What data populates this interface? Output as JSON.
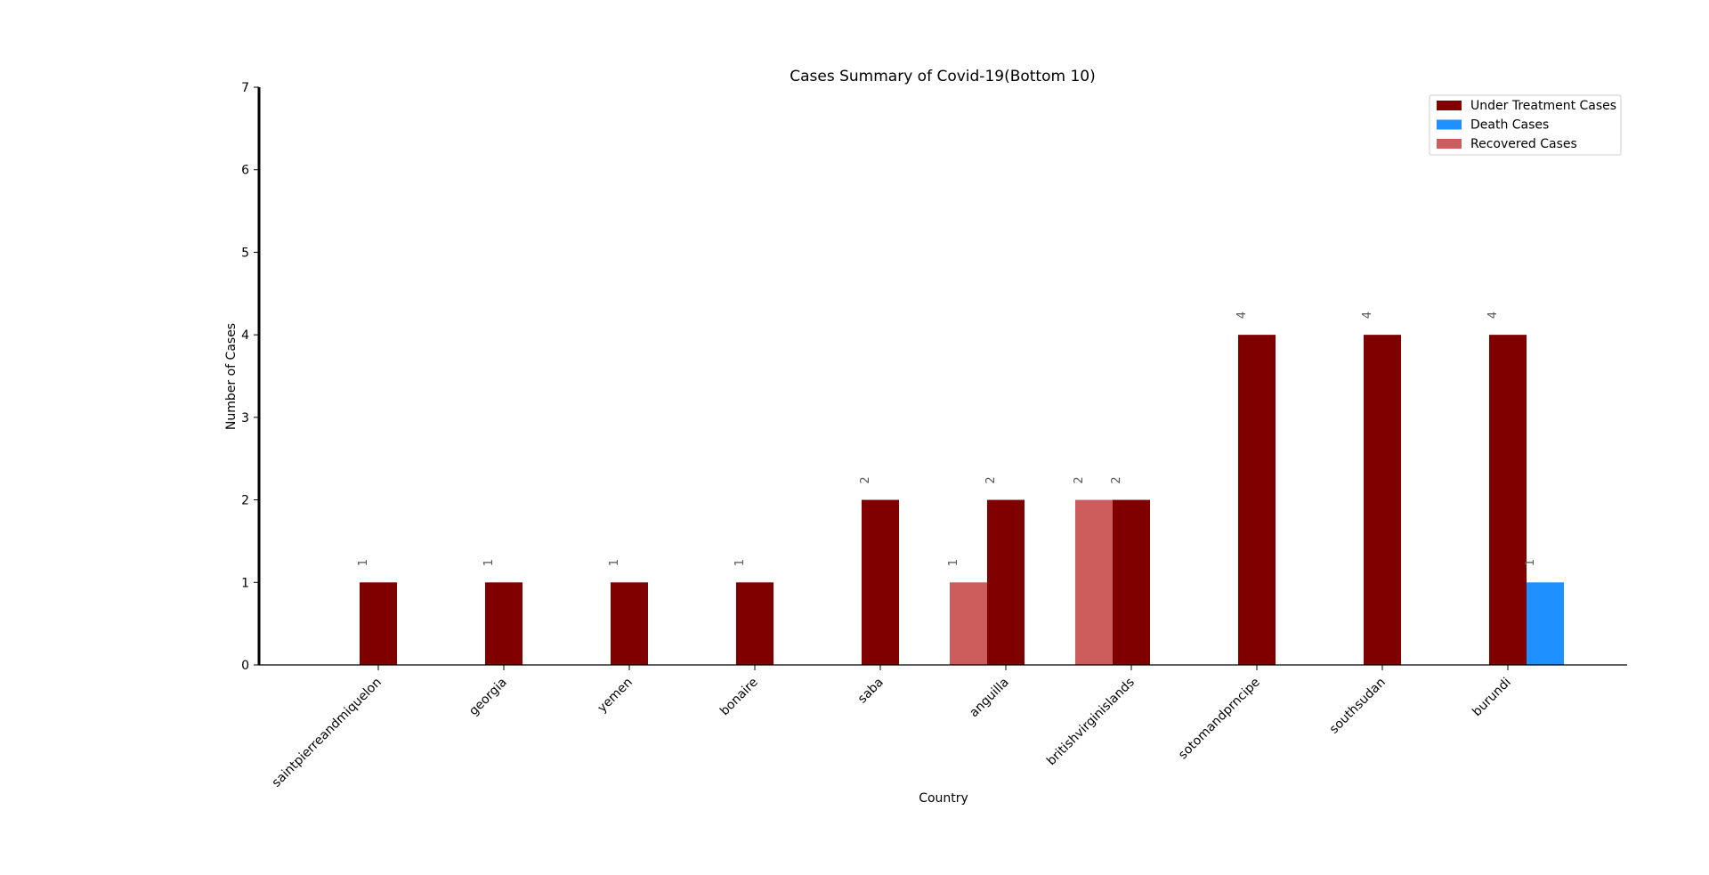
{
  "chart_data": {
    "type": "bar",
    "title": "Cases Summary of Covid-19(Bottom 10)",
    "xlabel": "Country",
    "ylabel": "Number of Cases",
    "ylim": [
      0,
      7
    ],
    "yticks": [
      0,
      1,
      2,
      3,
      4,
      5,
      6,
      7
    ],
    "grid": false,
    "legend_position": "top-right",
    "categories": [
      "saintpierreandmiquelon",
      "georgia",
      "yemen",
      "bonaire",
      "saba",
      "anguilla",
      "britishvirginislands",
      "sotomandprncipe",
      "southsudan",
      "burundi"
    ],
    "series": [
      {
        "name": "Under Treatment Cases",
        "color": "#800000",
        "offset": 0,
        "values": [
          1,
          1,
          1,
          1,
          2,
          2,
          2,
          4,
          4,
          4
        ]
      },
      {
        "name": "Death Cases",
        "color": "#1e90ff",
        "offset": 1,
        "values": [
          0,
          0,
          0,
          0,
          0,
          0,
          0,
          0,
          0,
          1
        ]
      },
      {
        "name": "Recovered Cases",
        "color": "#cd5c5c",
        "offset": -1,
        "values": [
          0,
          0,
          0,
          0,
          0,
          1,
          2,
          0,
          0,
          0
        ]
      }
    ]
  }
}
